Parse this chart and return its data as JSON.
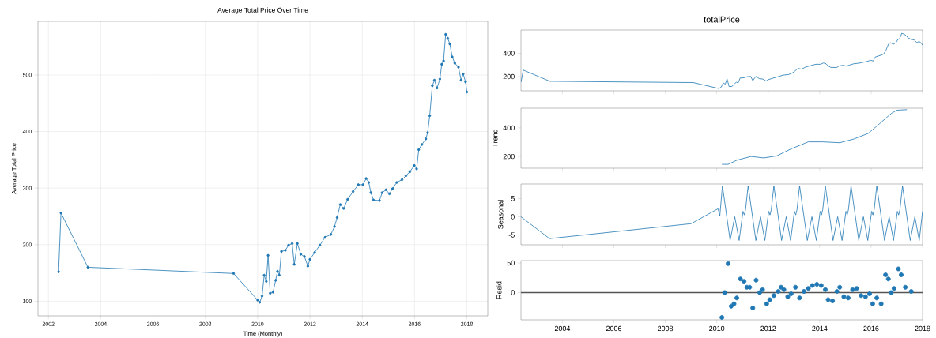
{
  "chart_data": [
    {
      "type": "line",
      "title": "Average Total Price Over Time",
      "xlabel": "Time (Monthly)",
      "ylabel": "Average Total Price",
      "color": "#1f77b4",
      "marker": "circle",
      "grid": true,
      "x": [
        2002.39,
        2002.48,
        2003.51,
        2009.08,
        2010.0,
        2010.08,
        2010.17,
        2010.25,
        2010.33,
        2010.4,
        2010.48,
        2010.59,
        2010.69,
        2010.76,
        2010.83,
        2010.91,
        2011.06,
        2011.18,
        2011.32,
        2011.4,
        2011.52,
        2011.65,
        2011.79,
        2011.92,
        2012.0,
        2012.18,
        2012.38,
        2012.58,
        2012.8,
        2012.94,
        2013.04,
        2013.16,
        2013.29,
        2013.44,
        2013.65,
        2013.85,
        2014.03,
        2014.15,
        2014.25,
        2014.33,
        2014.43,
        2014.66,
        2014.76,
        2014.91,
        2015.04,
        2015.16,
        2015.32,
        2015.52,
        2015.67,
        2015.82,
        2015.99,
        2016.08,
        2016.16,
        2016.28,
        2016.43,
        2016.5,
        2016.58,
        2016.68,
        2016.76,
        2016.86,
        2016.97,
        2017.04,
        2017.11,
        2017.19,
        2017.27,
        2017.35,
        2017.44,
        2017.54,
        2017.68,
        2017.78,
        2017.86,
        2017.95,
        2018.0
      ],
      "values": [
        152,
        256,
        160,
        149,
        102,
        98,
        109,
        146,
        135,
        181,
        114,
        116,
        137,
        153,
        146,
        188,
        190,
        199,
        202,
        165,
        202,
        183,
        179,
        162,
        174,
        186,
        199,
        213,
        218,
        232,
        248,
        271,
        264,
        280,
        294,
        306,
        306,
        317,
        310,
        292,
        279,
        278,
        292,
        297,
        290,
        299,
        310,
        315,
        322,
        329,
        340,
        334,
        368,
        377,
        387,
        398,
        428,
        481,
        491,
        477,
        493,
        519,
        525,
        572,
        565,
        555,
        532,
        521,
        514,
        491,
        502,
        488,
        470
      ],
      "xlim": [
        2001.6,
        2018.8
      ],
      "ylim": [
        74,
        595
      ],
      "xticks": [
        2002,
        2004,
        2006,
        2008,
        2010,
        2012,
        2014,
        2016,
        2018
      ],
      "yticks": [
        100,
        200,
        300,
        400,
        500
      ]
    },
    {
      "type": "line",
      "title": "totalPrice",
      "color": "#1f77b4",
      "tick_labels": "y",
      "x": [
        2002.39,
        2002.48,
        2003.51,
        2009.08,
        2010.0,
        2010.08,
        2010.17,
        2010.25,
        2010.33,
        2010.4,
        2010.48,
        2010.59,
        2010.69,
        2010.76,
        2010.83,
        2010.91,
        2011.06,
        2011.18,
        2011.32,
        2011.4,
        2011.52,
        2011.65,
        2011.79,
        2011.92,
        2012.0,
        2012.18,
        2012.38,
        2012.58,
        2012.8,
        2012.94,
        2013.04,
        2013.16,
        2013.29,
        2013.44,
        2013.65,
        2013.85,
        2014.03,
        2014.15,
        2014.25,
        2014.33,
        2014.43,
        2014.66,
        2014.76,
        2014.91,
        2015.04,
        2015.16,
        2015.32,
        2015.52,
        2015.67,
        2015.82,
        2015.99,
        2016.08,
        2016.16,
        2016.28,
        2016.43,
        2016.5,
        2016.58,
        2016.68,
        2016.76,
        2016.86,
        2016.97,
        2017.04,
        2017.11,
        2017.19,
        2017.27,
        2017.35,
        2017.44,
        2017.54,
        2017.68,
        2017.78,
        2017.86,
        2017.95,
        2018.0
      ],
      "values": [
        152,
        256,
        160,
        149,
        102,
        98,
        109,
        146,
        135,
        181,
        114,
        116,
        137,
        153,
        146,
        188,
        190,
        199,
        202,
        165,
        202,
        183,
        179,
        162,
        174,
        186,
        199,
        213,
        218,
        232,
        248,
        271,
        264,
        280,
        294,
        306,
        306,
        317,
        310,
        292,
        279,
        278,
        292,
        297,
        290,
        299,
        310,
        315,
        322,
        329,
        340,
        334,
        368,
        377,
        387,
        398,
        428,
        481,
        491,
        477,
        493,
        519,
        525,
        572,
        565,
        555,
        532,
        521,
        514,
        491,
        502,
        488,
        470
      ],
      "xlim": [
        2002.39,
        2018.0
      ],
      "ylim": [
        78,
        600
      ],
      "xticks": [
        2004,
        2006,
        2008,
        2010,
        2012,
        2014,
        2016,
        2018
      ],
      "yticks": [
        200,
        400
      ]
    },
    {
      "type": "line",
      "ylabel": "Trend",
      "color": "#1f77b4",
      "tick_labels": "y",
      "x": [
        2010.2,
        2010.44,
        2010.78,
        2011.33,
        2011.83,
        2012.33,
        2012.89,
        2013.56,
        2014.11,
        2014.78,
        2015.33,
        2015.89,
        2016.33,
        2016.78,
        2017.0,
        2017.39
      ],
      "values": [
        145,
        145,
        174,
        200,
        190,
        204,
        253,
        302,
        302,
        296,
        322,
        361,
        429,
        500,
        523,
        527
      ],
      "xlim": [
        2002.39,
        2018.0
      ],
      "ylim": [
        118,
        537
      ],
      "xticks": [
        2004,
        2006,
        2008,
        2010,
        2012,
        2014,
        2016,
        2018
      ],
      "yticks": [
        200,
        400
      ]
    },
    {
      "type": "line",
      "ylabel": "Seasonal",
      "color": "#1f77b4",
      "tick_labels": "y",
      "x": [
        2002.39,
        2003.5,
        2009.0,
        2010.05,
        2010.12,
        2010.22,
        2010.52,
        2010.7,
        2010.87,
        2011.02,
        2011.07,
        2011.12,
        2011.22,
        2011.52,
        2011.7,
        2011.87,
        2012.02,
        2012.07,
        2012.12,
        2012.22,
        2012.52,
        2012.7,
        2012.87,
        2013.02,
        2013.07,
        2013.12,
        2013.22,
        2013.52,
        2013.7,
        2013.87,
        2014.02,
        2014.07,
        2014.12,
        2014.22,
        2014.52,
        2014.7,
        2014.87,
        2015.02,
        2015.07,
        2015.12,
        2015.22,
        2015.52,
        2015.7,
        2015.87,
        2016.02,
        2016.07,
        2016.12,
        2016.22,
        2016.52,
        2016.7,
        2016.87,
        2017.02,
        2017.07,
        2017.12,
        2017.22,
        2017.52,
        2017.7,
        2017.87,
        2018.0
      ],
      "values": [
        0,
        -6,
        -1.9,
        2.2,
        0.3,
        8.5,
        -6.5,
        0,
        -6.5,
        1.5,
        0.5,
        2,
        8.5,
        -6.5,
        0,
        -6.5,
        1.5,
        0.5,
        2,
        8.5,
        -6.5,
        0,
        -6.5,
        1.5,
        0.5,
        2,
        8.5,
        -6.5,
        0,
        -6.5,
        1.5,
        0.5,
        2,
        8.5,
        -6.5,
        0,
        -6.5,
        1.5,
        0.5,
        2,
        8.5,
        -6.5,
        0,
        -6.5,
        1.5,
        0.5,
        2,
        8.5,
        -6.5,
        0,
        -6.5,
        1.5,
        0.5,
        2,
        8.5,
        -6.5,
        0,
        -6.5,
        1.5
      ],
      "xlim": [
        2002.39,
        2018.0
      ],
      "ylim": [
        -7.7,
        9.0
      ],
      "xticks": [
        2004,
        2006,
        2008,
        2010,
        2012,
        2014,
        2016,
        2018
      ],
      "yticks": [
        -5,
        0,
        5
      ]
    },
    {
      "type": "scatter",
      "ylabel": "Resid",
      "color": "#1f77b4",
      "marker": "circle",
      "x": [
        2010.2,
        2010.31,
        2010.44,
        2010.56,
        2010.67,
        2010.78,
        2010.92,
        2011.06,
        2011.17,
        2011.28,
        2011.4,
        2011.53,
        2011.67,
        2011.78,
        2011.94,
        2012.06,
        2012.22,
        2012.39,
        2012.5,
        2012.61,
        2012.76,
        2012.89,
        2013.06,
        2013.22,
        2013.39,
        2013.56,
        2013.72,
        2013.89,
        2014.06,
        2014.22,
        2014.33,
        2014.5,
        2014.67,
        2014.78,
        2014.94,
        2015.11,
        2015.28,
        2015.44,
        2015.61,
        2015.78,
        2015.94,
        2016.06,
        2016.22,
        2016.39,
        2016.56,
        2016.67,
        2016.78,
        2016.89,
        2017.06,
        2017.17,
        2017.33,
        2017.56
      ],
      "values": [
        -42,
        0,
        49,
        -23,
        -19,
        -9,
        23,
        19,
        9,
        9,
        -26,
        21,
        0,
        5,
        -19,
        -12,
        -5,
        2,
        9,
        5,
        -7,
        -2,
        9,
        -9,
        2,
        7,
        12,
        14,
        12,
        5,
        -12,
        -14,
        2,
        9,
        -7,
        -9,
        5,
        7,
        -5,
        -7,
        -2,
        -19,
        -9,
        -19,
        30,
        23,
        0,
        7,
        40,
        30,
        9,
        2
      ],
      "ref_lines": [
        {
          "axis": "y",
          "value": 0,
          "color": "#555555"
        }
      ],
      "xlim": [
        2002.39,
        2018.0
      ],
      "ylim": [
        -46,
        54
      ],
      "xticks": [
        2004,
        2006,
        2008,
        2010,
        2012,
        2014,
        2016,
        2018
      ],
      "yticks": [
        0,
        50
      ]
    }
  ]
}
